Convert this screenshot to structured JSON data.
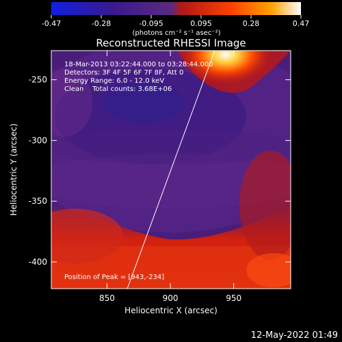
{
  "chart_data": {
    "type": "heatmap",
    "title": "Reconstructed RHESSI Image",
    "xlabel": "Heliocentric X (arcsec)",
    "ylabel": "Heliocentric Y (arcsec)",
    "xlim": [
      806,
      995
    ],
    "ylim": [
      -422,
      -226
    ],
    "x_ticks": [
      850,
      900,
      950
    ],
    "y_ticks": [
      -250,
      -300,
      -350,
      -400
    ],
    "colorbar": {
      "label": "(photons cm⁻² s⁻¹ asec⁻²)",
      "range": [
        -0.47,
        0.47
      ],
      "ticks": [
        "-0.47",
        "-0.28",
        "-0.095",
        "0.095",
        "0.28",
        "0.47"
      ],
      "colors": [
        "#1020e0",
        "#3b1a8c",
        "#5a2a80",
        "#b01818",
        "#ff4000",
        "#ffa000",
        "#ffffff"
      ]
    },
    "annotations": [
      "18-Mar-2013 03:22:44.000 to 03:28:44.000",
      "Detectors: 3F 4F 5F 6F 7F 8F, Att 0",
      "Energy Range: 6.0 - 12.0 keV",
      "Clean    Total counts: 3.68E+06"
    ],
    "peak_label": "Position of Peak = [943,-234]",
    "limb_line": {
      "x": [
        866,
        935
      ],
      "y": [
        -422,
        -226
      ]
    },
    "grid": false
  },
  "footer_date": "12-May-2022 01:49"
}
